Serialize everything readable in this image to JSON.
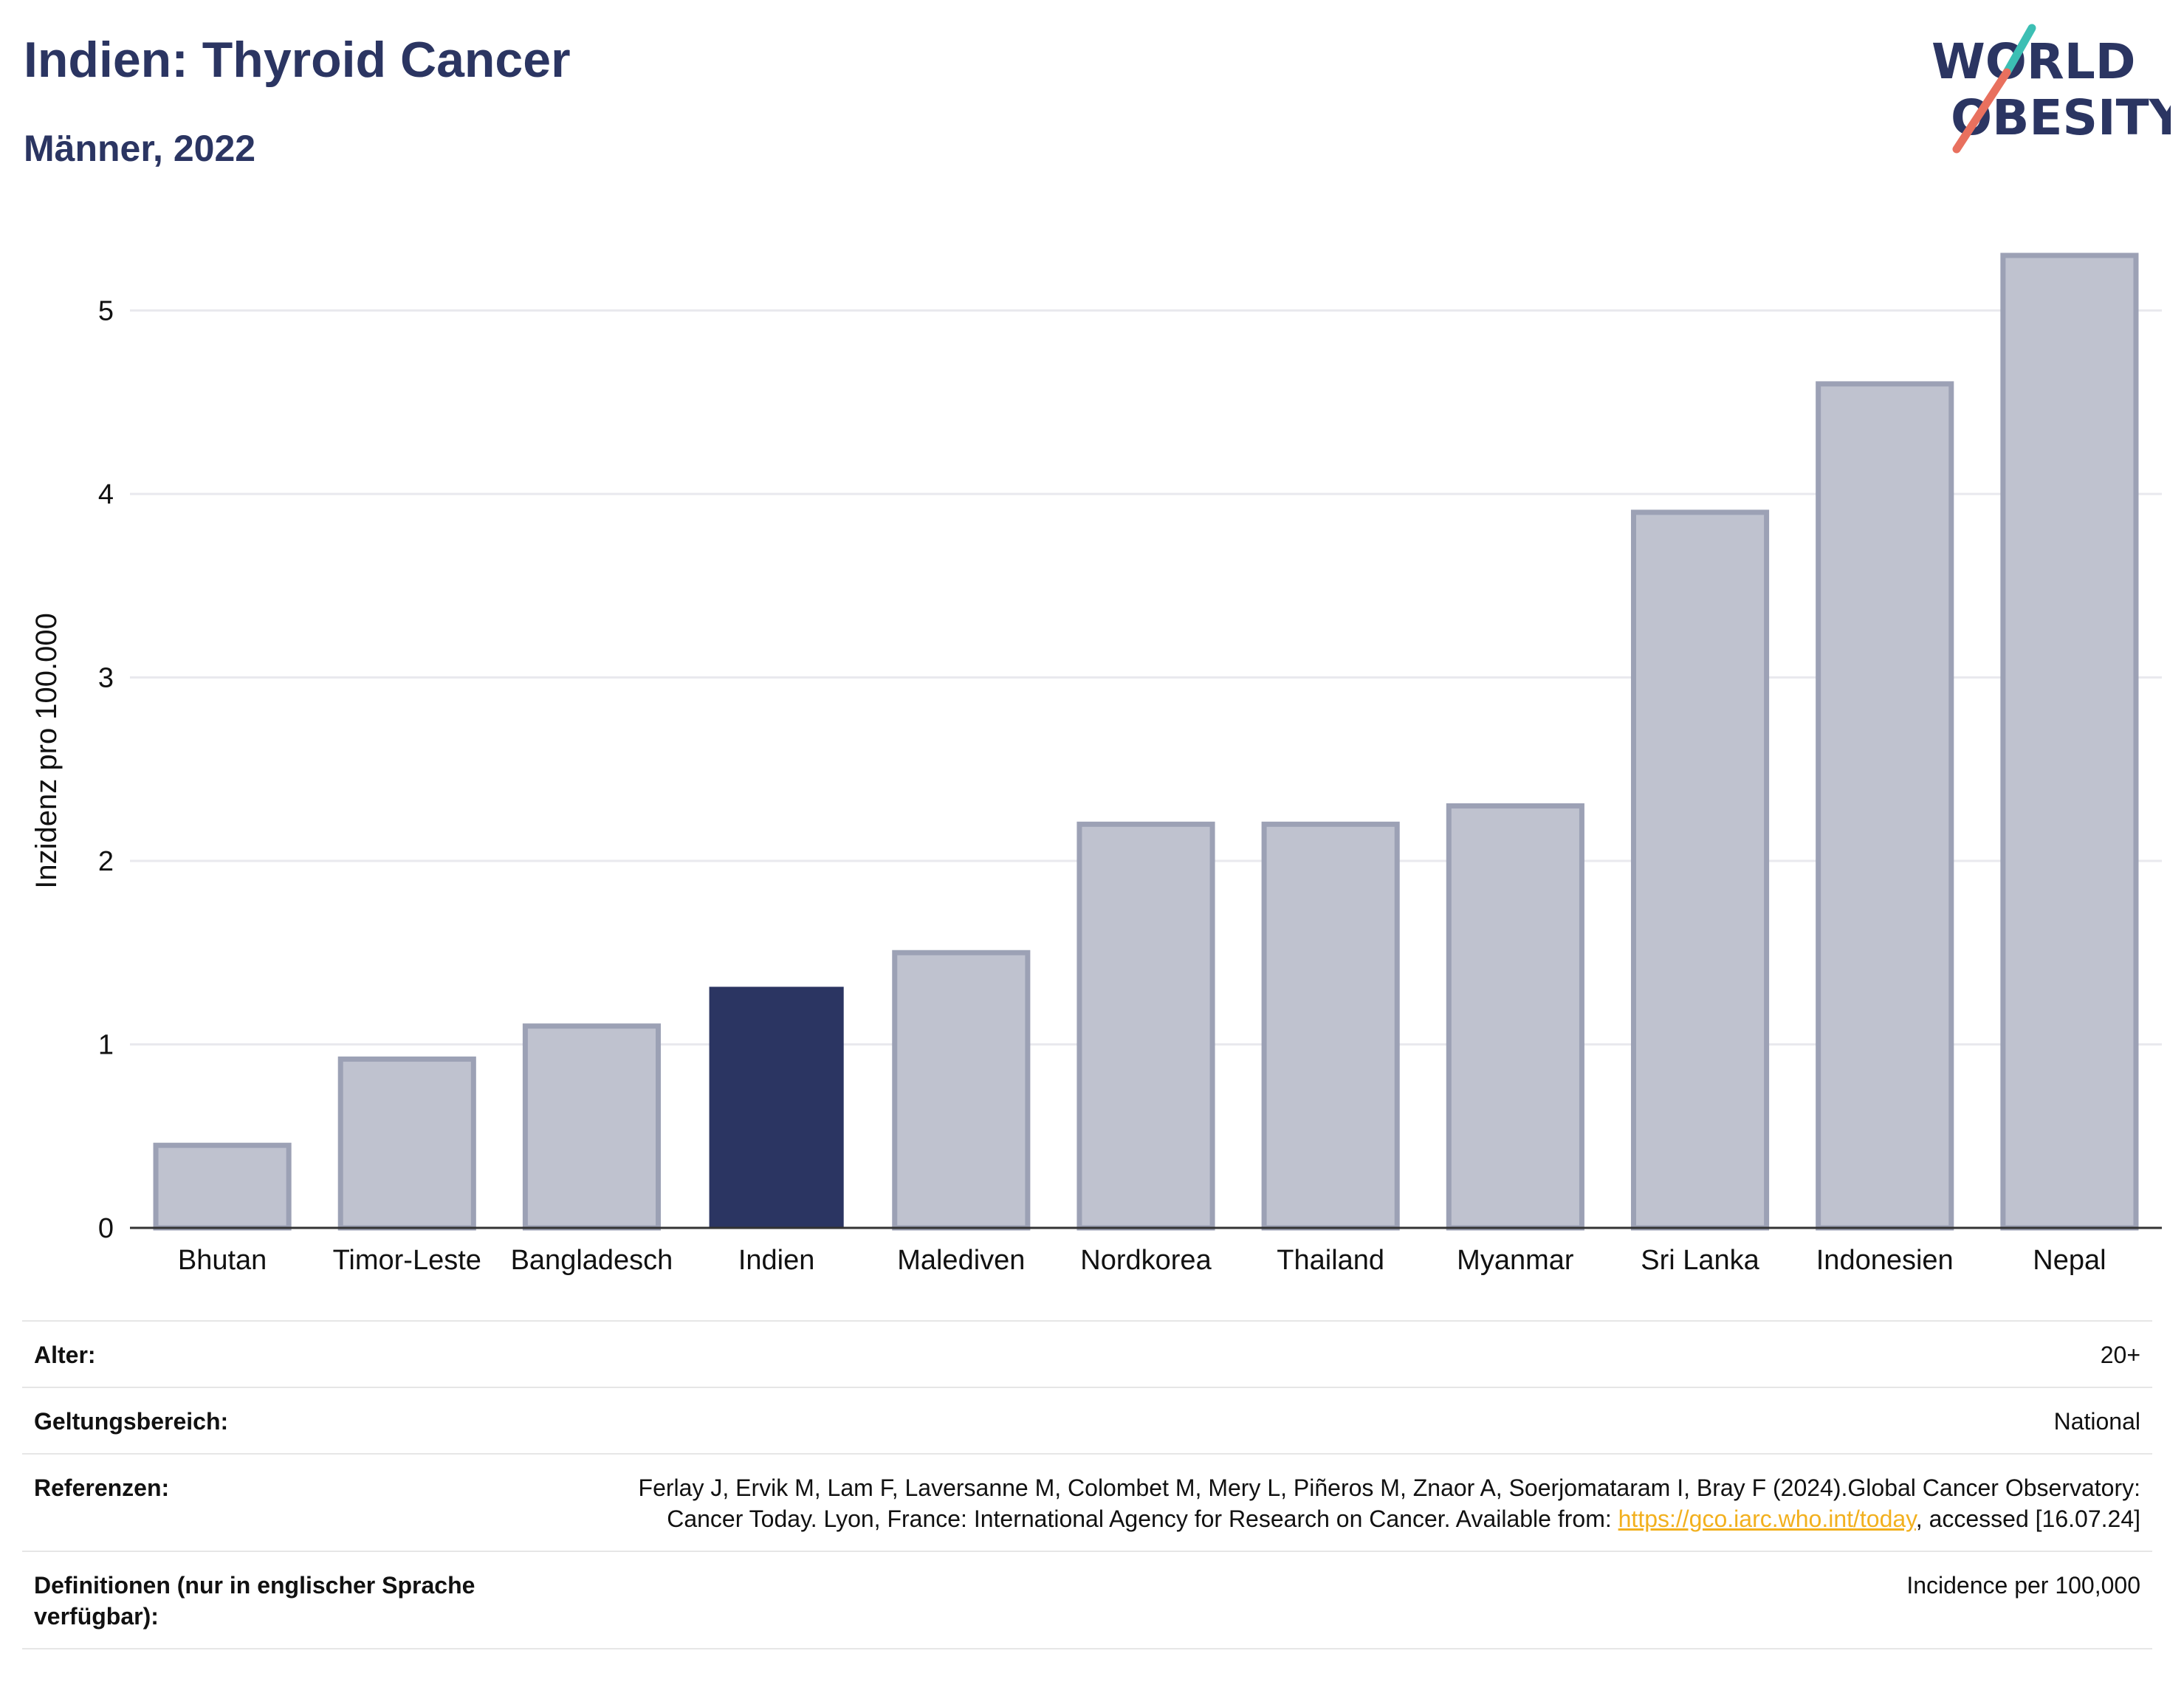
{
  "header": {
    "title": "Indien: Thyroid Cancer",
    "subtitle": "Männer, 2022"
  },
  "logo": {
    "line1": "WORLD",
    "line2": "OBESITY"
  },
  "colors": {
    "highlight": "#2b3562",
    "bar": "#bfc2cf",
    "bar_border": "#9ca1b5",
    "accent_teal": "#3cbfb4",
    "accent_coral": "#e8705e",
    "link": "#f2b01e"
  },
  "chart_data": {
    "type": "bar",
    "categories": [
      "Bhutan",
      "Timor-Leste",
      "Bangladesch",
      "Indien",
      "Malediven",
      "Nordkorea",
      "Thailand",
      "Myanmar",
      "Sri Lanka",
      "Indonesien",
      "Nepal"
    ],
    "values": [
      0.45,
      0.92,
      1.1,
      1.31,
      1.5,
      2.2,
      2.2,
      2.3,
      3.9,
      4.6,
      5.3
    ],
    "highlight": "Indien",
    "ylabel": "Inzidenz pro 100.000",
    "ylim": [
      0,
      5.5
    ],
    "yticks": [
      0,
      1,
      2,
      3,
      4,
      5
    ],
    "grid": true
  },
  "meta": {
    "age_label": "Alter:",
    "age_value": "20+",
    "scope_label": "Geltungsbereich:",
    "scope_value": "National",
    "ref_label": "Referenzen:",
    "ref_text_1": "Ferlay J, Ervik M, Lam F, Laversanne M, Colombet M, Mery L, Piñeros M, Znaor A, Soerjomataram I, Bray F (2024).Global Cancer Observatory: Cancer Today. Lyon, France: International Agency for Research on Cancer. Available from: ",
    "ref_link": "https://gco.iarc.who.int/today",
    "ref_text_2": ", accessed [16.07.24]",
    "def_label": "Definitionen (nur in englischer Sprache verfügbar):",
    "def_value": "Incidence per 100,000"
  }
}
